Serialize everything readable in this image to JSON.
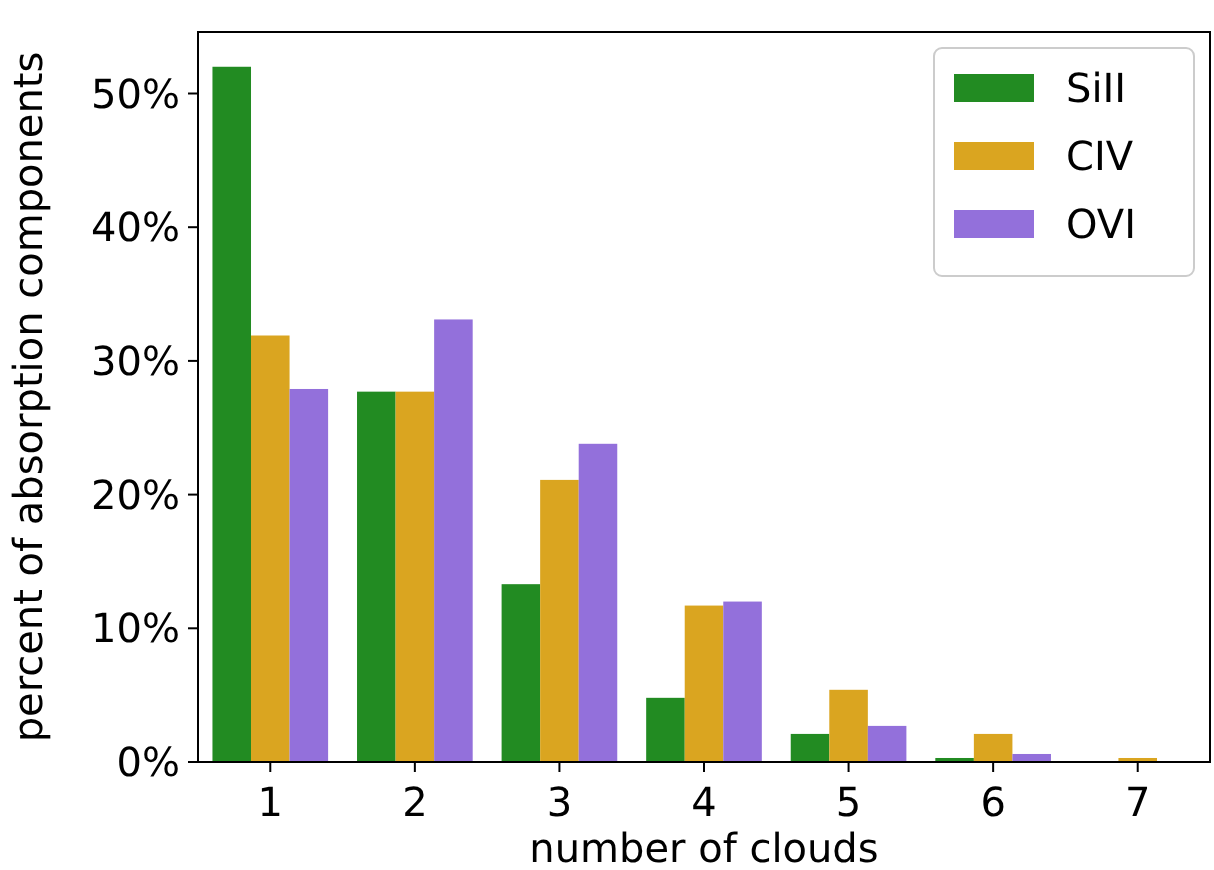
{
  "chart_data": {
    "type": "bar",
    "xlabel": "number of clouds",
    "ylabel": "percent of absorption components",
    "categories": [
      "1",
      "2",
      "3",
      "4",
      "5",
      "6",
      "7"
    ],
    "series": [
      {
        "name": "SiII",
        "color": "#228b22",
        "values": [
          52.0,
          27.7,
          13.3,
          4.8,
          2.1,
          0.3,
          0
        ]
      },
      {
        "name": "CIV",
        "color": "#daa520",
        "values": [
          31.9,
          27.7,
          21.1,
          11.7,
          5.4,
          2.1,
          0.3
        ]
      },
      {
        "name": "OVI",
        "color": "#9370db",
        "values": [
          27.9,
          33.1,
          23.8,
          12.0,
          2.7,
          0.6,
          0
        ]
      }
    ],
    "ylim": [
      0,
      54.6
    ],
    "yticks": [
      {
        "value": 0,
        "label": "0%"
      },
      {
        "value": 10,
        "label": "10%"
      },
      {
        "value": 20,
        "label": "20%"
      },
      {
        "value": 30,
        "label": "30%"
      },
      {
        "value": 40,
        "label": "40%"
      },
      {
        "value": 50,
        "label": "50%"
      }
    ],
    "legend": "top right",
    "grid": false
  }
}
